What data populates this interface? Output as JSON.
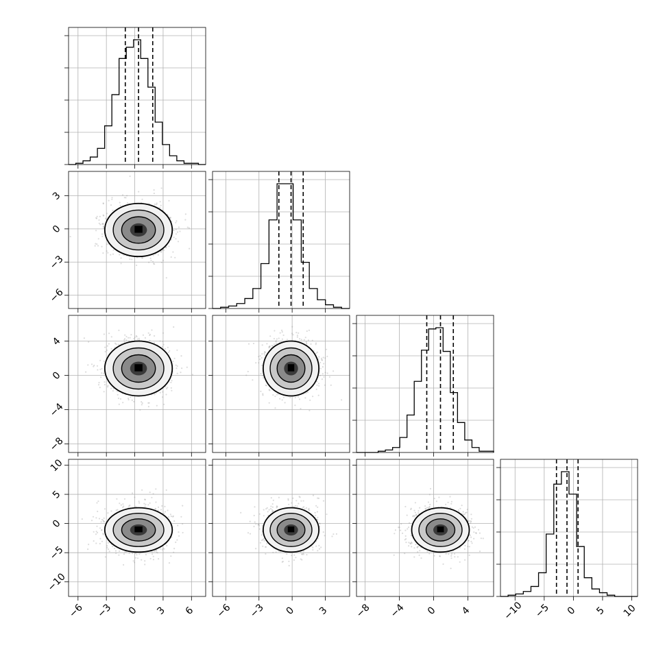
{
  "chart_data": {
    "type": "corner",
    "grid": true,
    "variables": [
      {
        "index": 0,
        "range": [
          -7,
          7.5
        ],
        "ticks": [
          -6,
          -3,
          0,
          3,
          6
        ],
        "tick_labels": [
          "−6",
          "−3",
          "0",
          "3",
          "6"
        ],
        "median": 0.4,
        "q16": -1.0,
        "q84": 1.9
      },
      {
        "index": 1,
        "range": [
          -7.2,
          5.2
        ],
        "ticks": [
          -6,
          -3,
          0,
          3
        ],
        "tick_labels": [
          "−6",
          "−3",
          "0",
          "3"
        ],
        "median": -0.1,
        "q16": -1.2,
        "q84": 1.0
      },
      {
        "index": 2,
        "range": [
          -9,
          7
        ],
        "ticks": [
          -8,
          -4,
          0,
          4
        ],
        "tick_labels": [
          "−8",
          "−4",
          "0",
          "4"
        ],
        "median": 0.8,
        "q16": -0.8,
        "q84": 2.3
      },
      {
        "index": 3,
        "range": [
          -12.5,
          11
        ],
        "ticks": [
          -10,
          -5,
          0,
          5,
          10
        ],
        "tick_labels": [
          "−10",
          "−5",
          "0",
          "5",
          "10"
        ],
        "median": -1.1,
        "q16": -2.9,
        "q84": 0.8
      }
    ],
    "histograms": [
      {
        "var": 0,
        "counts": [
          0.0,
          0.01,
          0.03,
          0.06,
          0.13,
          0.31,
          0.56,
          0.85,
          0.94,
          1.0,
          0.85,
          0.62,
          0.34,
          0.16,
          0.07,
          0.03,
          0.01,
          0.01,
          0.0
        ]
      },
      {
        "var": 1,
        "counts": [
          0.0,
          0.01,
          0.02,
          0.04,
          0.08,
          0.16,
          0.36,
          0.71,
          1.0,
          1.0,
          0.71,
          0.37,
          0.16,
          0.07,
          0.03,
          0.01,
          0.0
        ]
      },
      {
        "var": 2,
        "counts": [
          0.0,
          0.0,
          0.0,
          0.01,
          0.02,
          0.04,
          0.12,
          0.3,
          0.57,
          0.82,
          0.99,
          1.0,
          0.81,
          0.48,
          0.24,
          0.1,
          0.04,
          0.01,
          0.01
        ]
      },
      {
        "var": 3,
        "counts": [
          0.0,
          0.01,
          0.02,
          0.04,
          0.08,
          0.19,
          0.5,
          0.9,
          1.0,
          0.82,
          0.4,
          0.15,
          0.06,
          0.03,
          0.01,
          0.0,
          0.0,
          0.0
        ]
      }
    ],
    "pairs": [
      {
        "x": 0,
        "y": 1,
        "mean": [
          0.4,
          -0.1
        ],
        "sigma": [
          1.7,
          1.2
        ]
      },
      {
        "x": 0,
        "y": 2,
        "mean": [
          0.4,
          0.8
        ],
        "sigma": [
          1.7,
          1.6
        ]
      },
      {
        "x": 1,
        "y": 2,
        "mean": [
          -0.1,
          0.8
        ],
        "sigma": [
          1.2,
          1.6
        ]
      },
      {
        "x": 0,
        "y": 3,
        "mean": [
          0.4,
          -1.1
        ],
        "sigma": [
          1.7,
          1.9
        ]
      },
      {
        "x": 1,
        "y": 3,
        "mean": [
          -0.1,
          -1.1
        ],
        "sigma": [
          1.2,
          1.9
        ]
      },
      {
        "x": 2,
        "y": 3,
        "mean": [
          0.8,
          -1.1
        ],
        "sigma": [
          1.6,
          1.9
        ]
      }
    ],
    "contour_levels_sigma": [
      0.5,
      1.0,
      1.5,
      2.0
    ]
  }
}
